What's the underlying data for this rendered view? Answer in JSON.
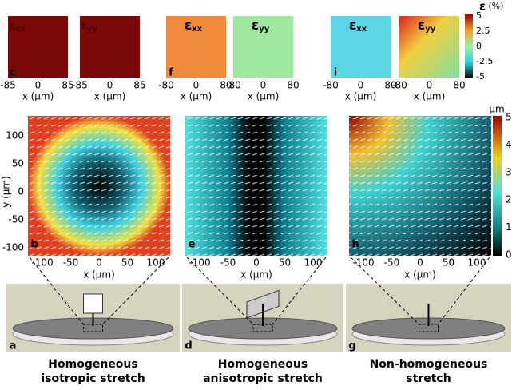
{
  "strain_maps": [
    {
      "label": "c",
      "subpanels": [
        {
          "symbol": "ε",
          "component": "xx",
          "x_ticks": [
            "-85",
            "0",
            "85"
          ],
          "x_label": "x (μm)"
        },
        {
          "symbol": "ε",
          "component": "yy",
          "x_ticks": [
            "-85",
            "0",
            "85"
          ],
          "x_label": "x (μm)"
        }
      ]
    },
    {
      "label": "f",
      "subpanels": [
        {
          "symbol": "ε",
          "component": "xx",
          "x_ticks": [
            "-80",
            "0",
            "80"
          ],
          "x_label": "x (μm)"
        },
        {
          "symbol": "ε",
          "component": "yy",
          "x_ticks": [
            "-80",
            "0",
            "80"
          ],
          "x_label": "x (μm)"
        }
      ]
    },
    {
      "label": "i",
      "subpanels": [
        {
          "symbol": "ε",
          "component": "xx",
          "x_ticks": [
            "-80",
            "0",
            "80"
          ],
          "x_label": "x (μm)"
        },
        {
          "symbol": "ε",
          "component": "yy",
          "x_ticks": [
            "-80",
            "0",
            "80"
          ],
          "x_label": "x (μm)"
        }
      ]
    }
  ],
  "strain_colorbar": {
    "symbol": "ε",
    "unit": "(%)",
    "ticks": [
      "5",
      "2.5",
      "0",
      "-2.5",
      "-5"
    ]
  },
  "displacement_maps": [
    {
      "label": "b",
      "x_ticks": [
        "-100",
        "-50",
        "0",
        "50",
        "100"
      ],
      "x_label": "x (μm)"
    },
    {
      "label": "e",
      "x_ticks": [
        "-100",
        "-50",
        "0",
        "50",
        "100"
      ],
      "x_label": "x (μm)"
    },
    {
      "label": "h",
      "x_ticks": [
        "-100",
        "-50",
        "0",
        "50",
        "100"
      ],
      "x_label": "x (μm)"
    }
  ],
  "y_label": "y (μm)",
  "y_ticks": [
    "100",
    "50",
    "0",
    "-50",
    "-100"
  ],
  "displacement_colorbar": {
    "unit": "μm",
    "ticks": [
      "5",
      "4",
      "3",
      "2",
      "1",
      "0"
    ]
  },
  "setups": [
    {
      "label": "a",
      "caption": [
        "Homogeneous",
        "isotropic stretch"
      ]
    },
    {
      "label": "d",
      "caption": [
        "Homogeneous",
        "anisotropic stretch"
      ]
    },
    {
      "label": "g",
      "caption": [
        "Non-homogeneous",
        "stretch"
      ]
    }
  ]
}
